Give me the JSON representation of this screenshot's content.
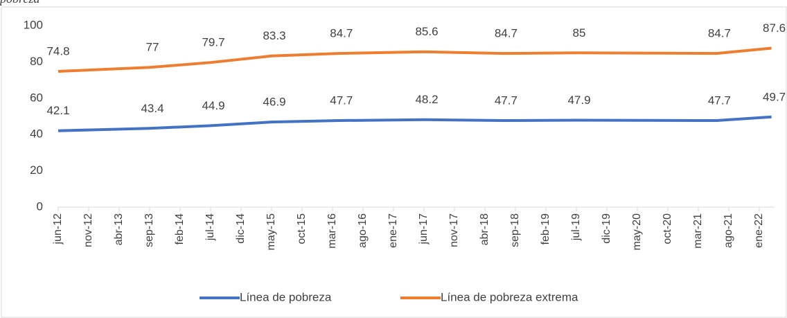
{
  "chart_data": {
    "type": "line",
    "title": "pobreza",
    "x": [
      "2012-06",
      "2013-09",
      "2014-07",
      "2015-05",
      "2016-04",
      "2017-06",
      "2018-07",
      "2019-07",
      "2021-06",
      "2022-03"
    ],
    "series": [
      {
        "name": "Línea de pobreza",
        "color": "#4472c4",
        "values": [
          42.1,
          43.4,
          44.9,
          46.9,
          47.7,
          48.2,
          47.7,
          47.9,
          47.7,
          49.7
        ]
      },
      {
        "name": "Línea de pobreza extrema",
        "color": "#ed7d31",
        "values": [
          74.8,
          77,
          79.7,
          83.3,
          84.7,
          85.6,
          84.7,
          85,
          84.7,
          87.6
        ]
      }
    ],
    "xlim": [
      "2012-06",
      "2022-03"
    ],
    "xticks": [
      {
        "value": "2012-06",
        "label": "jun-12"
      },
      {
        "value": "2012-11",
        "label": "nov-12"
      },
      {
        "value": "2013-04",
        "label": "abr-13"
      },
      {
        "value": "2013-09",
        "label": "sep-13"
      },
      {
        "value": "2014-02",
        "label": "feb-14"
      },
      {
        "value": "2014-07",
        "label": "jul-14"
      },
      {
        "value": "2014-12",
        "label": "dic-14"
      },
      {
        "value": "2015-05",
        "label": "may-15"
      },
      {
        "value": "2015-10",
        "label": "oct-15"
      },
      {
        "value": "2016-03",
        "label": "mar-16"
      },
      {
        "value": "2016-08",
        "label": "ago-16"
      },
      {
        "value": "2017-01",
        "label": "ene-17"
      },
      {
        "value": "2017-06",
        "label": "jun-17"
      },
      {
        "value": "2017-11",
        "label": "nov-17"
      },
      {
        "value": "2018-04",
        "label": "abr-18"
      },
      {
        "value": "2018-09",
        "label": "sep-18"
      },
      {
        "value": "2019-02",
        "label": "feb-19"
      },
      {
        "value": "2019-07",
        "label": "jul-19"
      },
      {
        "value": "2019-12",
        "label": "dic-19"
      },
      {
        "value": "2020-05",
        "label": "may-20"
      },
      {
        "value": "2020-10",
        "label": "oct-20"
      },
      {
        "value": "2021-03",
        "label": "mar-21"
      },
      {
        "value": "2021-08",
        "label": "ago-21"
      },
      {
        "value": "2022-01",
        "label": "ene-22"
      }
    ],
    "ylim": [
      0,
      100
    ],
    "yticks": [
      0,
      20,
      40,
      60,
      80,
      100
    ],
    "legend": "bottom"
  }
}
